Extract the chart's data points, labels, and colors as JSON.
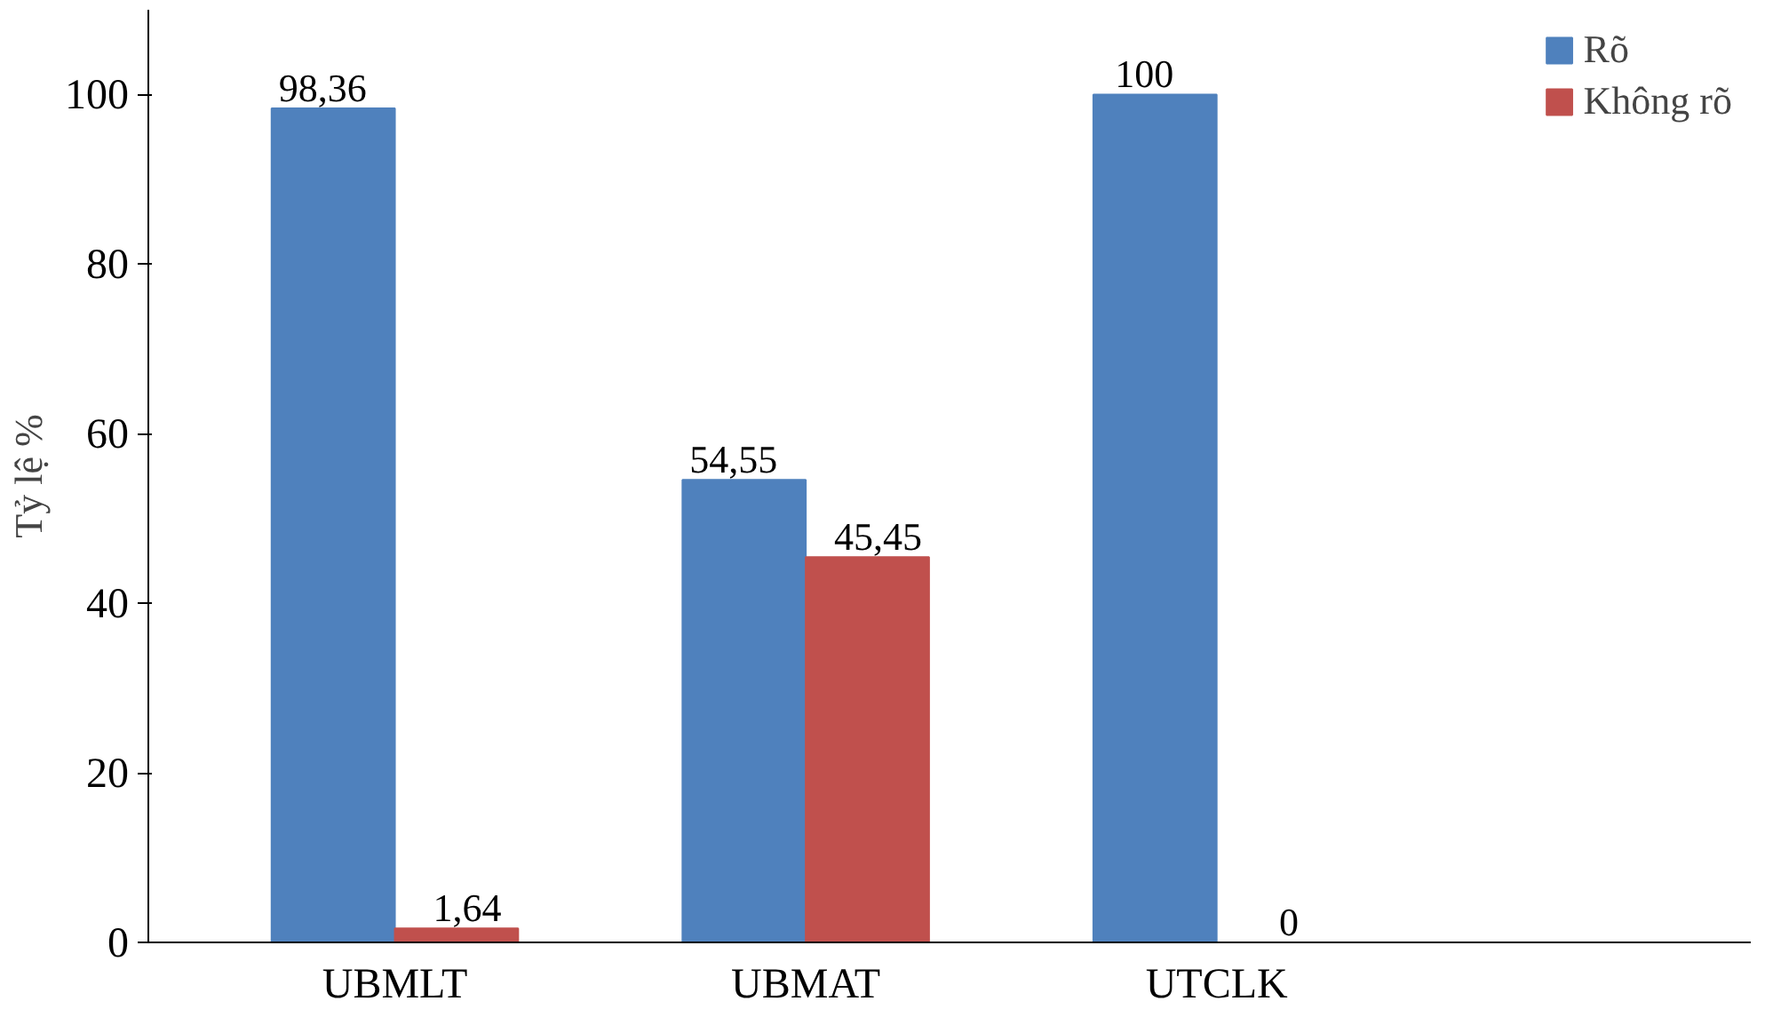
{
  "chart_data": {
    "type": "bar",
    "ylabel": "Tỷ lệ %",
    "categories": [
      "UBMLT",
      "UBMAT",
      "UTCLK"
    ],
    "series": [
      {
        "name": "Rõ",
        "color": "#4f81bd",
        "values": [
          98.36,
          54.55,
          100
        ],
        "value_labels": [
          "98,36",
          "54,55",
          "100"
        ]
      },
      {
        "name": "Không rõ",
        "color": "#c0504d",
        "values": [
          1.64,
          45.45,
          0
        ],
        "value_labels": [
          "1,64",
          "45,45",
          "0"
        ]
      }
    ],
    "ylim": [
      0,
      110
    ],
    "yticks": [
      0,
      20,
      40,
      60,
      80,
      100
    ],
    "grid": false,
    "legend": "top right"
  }
}
